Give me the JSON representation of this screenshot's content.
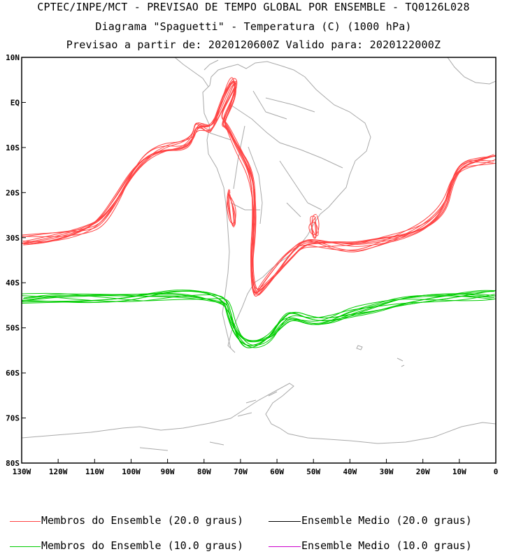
{
  "header": {
    "line1": "CPTEC/INPE/MCT - PREVISAO DE TEMPO GLOBAL POR ENSEMBLE - TQ0126L028",
    "line2": "Diagrama \"Spaguetti\" - Temperatura (C) (1000 hPa)",
    "line3": "Previsao a partir de: 2020120600Z  Valido para: 2020122000Z"
  },
  "chart_data": {
    "type": "line",
    "title": "Diagrama \"Spaguetti\" - Temperatura (C) (1000 hPa)",
    "x_range": [
      -130,
      0
    ],
    "y_range": [
      -80,
      10
    ],
    "x_ticks": [
      {
        "v": -130,
        "label": "130W"
      },
      {
        "v": -120,
        "label": "120W"
      },
      {
        "v": -110,
        "label": "110W"
      },
      {
        "v": -100,
        "label": "100W"
      },
      {
        "v": -90,
        "label": "90W"
      },
      {
        "v": -80,
        "label": "80W"
      },
      {
        "v": -70,
        "label": "70W"
      },
      {
        "v": -60,
        "label": "60W"
      },
      {
        "v": -50,
        "label": "50W"
      },
      {
        "v": -40,
        "label": "40W"
      },
      {
        "v": -30,
        "label": "30W"
      },
      {
        "v": -20,
        "label": "20W"
      },
      {
        "v": -10,
        "label": "10W"
      },
      {
        "v": 0,
        "label": "0"
      }
    ],
    "y_ticks": [
      {
        "v": 10,
        "label": "10N"
      },
      {
        "v": 0,
        "label": "EQ"
      },
      {
        "v": -10,
        "label": "10S"
      },
      {
        "v": -20,
        "label": "20S"
      },
      {
        "v": -30,
        "label": "30S"
      },
      {
        "v": -40,
        "label": "40S"
      },
      {
        "v": -50,
        "label": "50S"
      },
      {
        "v": -60,
        "label": "60S"
      },
      {
        "v": -70,
        "label": "70S"
      },
      {
        "v": -80,
        "label": "80S"
      }
    ],
    "series": [
      {
        "name": "20C isotherm (approx. ensemble envelope)",
        "color": "#ff4444",
        "members": 10,
        "points": [
          [
            -130,
            -30.5
          ],
          [
            -125,
            -30.2
          ],
          [
            -118,
            -29.4
          ],
          [
            -112,
            -28.2
          ],
          [
            -108,
            -26.5
          ],
          [
            -104,
            -22
          ],
          [
            -100,
            -16
          ],
          [
            -96,
            -12
          ],
          [
            -91,
            -10
          ],
          [
            -86,
            -9.6
          ],
          [
            -83,
            -8
          ],
          [
            -82,
            -5
          ],
          [
            -80,
            -5.5
          ],
          [
            -78,
            -6
          ],
          [
            -76,
            -2
          ],
          [
            -74,
            2
          ],
          [
            -72,
            5
          ],
          [
            -71,
            4
          ],
          [
            -72,
            1
          ],
          [
            -75,
            -4
          ],
          [
            -74,
            -5
          ],
          [
            -71,
            -10
          ],
          [
            -67,
            -16
          ],
          [
            -66,
            -25
          ],
          [
            -67,
            -37
          ],
          [
            -66,
            -43
          ],
          [
            -64,
            -41
          ],
          [
            -60,
            -37
          ],
          [
            -57,
            -34
          ],
          [
            -53,
            -31
          ],
          [
            -48,
            -31.3
          ],
          [
            -44,
            -31.8
          ],
          [
            -38,
            -32.2
          ],
          [
            -32,
            -31
          ],
          [
            -26,
            -29.7
          ],
          [
            -19,
            -27.2
          ],
          [
            -14,
            -23
          ],
          [
            -12,
            -17
          ],
          [
            -9,
            -13.8
          ],
          [
            -4,
            -13
          ],
          [
            0,
            -12.5
          ]
        ]
      },
      {
        "name": "20C closed contour (Chile coast)",
        "color": "#ff4444",
        "members": 4,
        "points": [
          [
            -72.8,
            -20
          ],
          [
            -72,
            -21.5
          ],
          [
            -71.6,
            -24
          ],
          [
            -71.8,
            -27
          ],
          [
            -72.6,
            -27.5
          ],
          [
            -73.3,
            -25
          ],
          [
            -73.4,
            -22
          ],
          [
            -72.8,
            -20
          ]
        ]
      },
      {
        "name": "20C closed contour (Southern Brazil)",
        "color": "#ff4444",
        "members": 4,
        "points": [
          [
            -49.3,
            -25.8
          ],
          [
            -48.8,
            -27
          ],
          [
            -49,
            -29.5
          ],
          [
            -50.2,
            -29.5
          ],
          [
            -51,
            -27.5
          ],
          [
            -50.6,
            -26
          ],
          [
            -49.3,
            -25.8
          ]
        ]
      },
      {
        "name": "10C isotherm (approx. ensemble envelope)",
        "color": "#00cc00",
        "members": 10,
        "points": [
          [
            -130,
            -43.5
          ],
          [
            -122,
            -43.3
          ],
          [
            -112,
            -43.6
          ],
          [
            -102,
            -43.6
          ],
          [
            -96,
            -43.3
          ],
          [
            -88,
            -42.6
          ],
          [
            -81,
            -42.7
          ],
          [
            -77,
            -43.2
          ],
          [
            -74,
            -44
          ],
          [
            -73,
            -46.5
          ],
          [
            -71.5,
            -50.5
          ],
          [
            -69,
            -53.5
          ],
          [
            -66,
            -54
          ],
          [
            -62,
            -52.5
          ],
          [
            -59,
            -49
          ],
          [
            -56,
            -47
          ],
          [
            -50,
            -48.5
          ],
          [
            -45,
            -48
          ],
          [
            -40,
            -46.6
          ],
          [
            -33,
            -45.5
          ],
          [
            -26,
            -44.2
          ],
          [
            -18,
            -43.6
          ],
          [
            -10,
            -43.2
          ],
          [
            -4,
            -42.8
          ],
          [
            0,
            -42.6
          ]
        ]
      }
    ],
    "legend": [
      {
        "label": "Membros do Ensemble (20.0 graus)",
        "color": "#ff4444"
      },
      {
        "label": "Ensemble Medio (20.0 graus)",
        "color": "#000000"
      },
      {
        "label": "Membros do Ensemble (10.0 graus)",
        "color": "#00cc00"
      },
      {
        "label": "Ensemble Medio (10.0 graus)",
        "color": "#cc00cc"
      }
    ]
  },
  "colors": {
    "coast": "#a9a9a9",
    "axis": "#000000"
  }
}
